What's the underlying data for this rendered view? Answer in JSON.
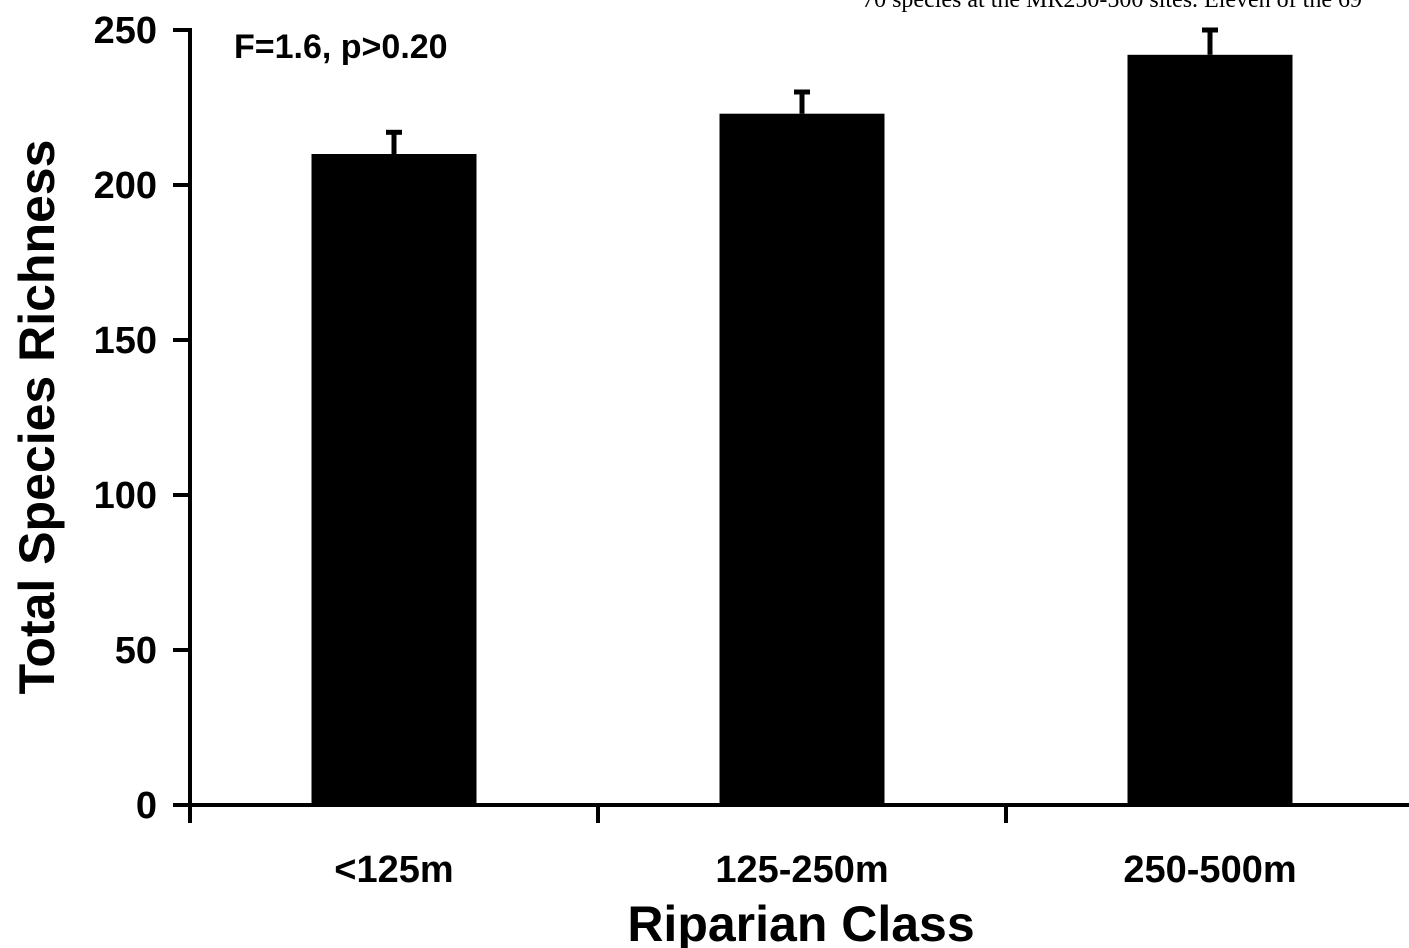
{
  "chart_data": {
    "type": "bar",
    "categories": [
      "<125m",
      "125-250m",
      "250-500m"
    ],
    "values": [
      210,
      223,
      242
    ],
    "error_upper": [
      217,
      230,
      250
    ],
    "xlabel": "Riparian Class",
    "ylabel": "Total Species Richness",
    "ylim": [
      0,
      250
    ],
    "yticks": [
      0,
      50,
      100,
      150,
      200,
      250
    ],
    "grid": false,
    "legend": "none",
    "annotation": "F=1.6,  p>0.20",
    "bar_color": "#000000"
  },
  "page_header_fragment": "70 species at the MR250-500 sites. Eleven of the 69"
}
